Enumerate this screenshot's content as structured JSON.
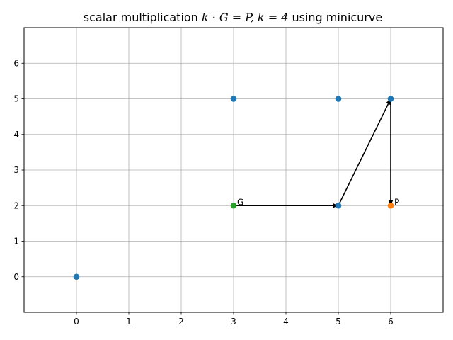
{
  "chart_data": {
    "type": "scatter",
    "title": {
      "prefix": "scalar multiplication ",
      "math": "k · G = P, k = 4",
      "suffix": " using minicurve"
    },
    "xlabel": "",
    "ylabel": "",
    "xlim": [
      -1,
      7
    ],
    "ylim": [
      -1,
      7
    ],
    "xticks": [
      0,
      1,
      2,
      3,
      4,
      5,
      6
    ],
    "yticks": [
      0,
      1,
      2,
      3,
      4,
      5,
      6
    ],
    "grid": true,
    "colors": {
      "curve_points": "#1f77b4",
      "result_point": "#ff7f0e",
      "generator_point": "#2ca02c",
      "grid": "#b0b0b0",
      "arrows": "#000000"
    },
    "series": [
      {
        "role": "curve_points",
        "points": [
          [
            0,
            0
          ],
          [
            3,
            5
          ],
          [
            5,
            5
          ],
          [
            6,
            5
          ],
          [
            5,
            2
          ]
        ]
      },
      {
        "role": "result_point",
        "points": [
          [
            6,
            2
          ]
        ],
        "label": "P"
      },
      {
        "role": "generator_point",
        "points": [
          [
            3,
            2
          ]
        ],
        "label": "G"
      }
    ],
    "arrows": [
      {
        "from": [
          3,
          2
        ],
        "to": [
          5,
          2
        ]
      },
      {
        "from": [
          5,
          2
        ],
        "to": [
          6,
          5
        ]
      },
      {
        "from": [
          6,
          5
        ],
        "to": [
          6,
          2
        ]
      }
    ]
  }
}
